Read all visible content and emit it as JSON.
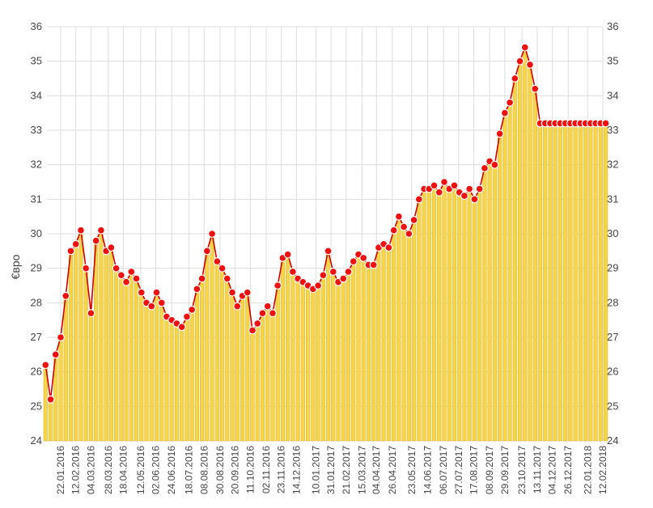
{
  "chart_data": {
    "type": "area",
    "ylabel": "€вро",
    "ylim": [
      24,
      36
    ],
    "yticks": [
      24,
      25,
      26,
      27,
      28,
      29,
      30,
      31,
      32,
      33,
      34,
      35,
      36
    ],
    "x_tick_labels": [
      "22.01.2016",
      "12.02.2016",
      "04.03.2016",
      "28.03.2016",
      "18.04.2016",
      "12.05.2016",
      "02.06.2016",
      "24.06.2016",
      "18.07.2016",
      "08.08.2016",
      "30.08.2016",
      "20.09.2016",
      "11.10.2016",
      "02.11.2016",
      "23.11.2016",
      "14.12.2016",
      "10.01.2017",
      "31.01.2017",
      "21.02.2017",
      "15.03.2017",
      "04.04.2017",
      "26.04.2017",
      "23.05.2017",
      "14.06.2017",
      "06.07.2017",
      "27.07.2017",
      "17.08.2017",
      "08.09.2017",
      "29.09.2017",
      "23.10.2017",
      "13.11.2017",
      "04.12.2017",
      "26.12.2017",
      "22.01.2018",
      "12.02.2018"
    ],
    "grid": true,
    "axes": "left-and-right",
    "colors": {
      "fill": "#f7d54a",
      "bar_stroke": "#e3b92a",
      "line": "#d40000",
      "marker": "#ee1111",
      "marker_edge": "#ffffff",
      "grid": "#dddddd"
    },
    "series": [
      {
        "x": [
          "2016-01-01",
          "2016-01-08",
          "2016-01-15",
          "2016-01-22",
          "2016-01-29",
          "2016-02-05",
          "2016-02-12",
          "2016-02-19",
          "2016-02-26",
          "2016-03-04",
          "2016-03-11",
          "2016-03-18",
          "2016-03-25",
          "2016-04-01",
          "2016-04-08",
          "2016-04-15",
          "2016-04-22",
          "2016-04-29",
          "2016-05-06",
          "2016-05-13",
          "2016-05-20",
          "2016-05-27",
          "2016-06-03",
          "2016-06-10",
          "2016-06-17",
          "2016-06-24",
          "2016-07-01",
          "2016-07-08",
          "2016-07-15",
          "2016-07-22",
          "2016-07-29",
          "2016-08-05",
          "2016-08-12",
          "2016-08-19",
          "2016-08-26",
          "2016-09-02",
          "2016-09-09",
          "2016-09-16",
          "2016-09-23",
          "2016-09-30",
          "2016-10-07",
          "2016-10-14",
          "2016-10-21",
          "2016-10-28",
          "2016-11-04",
          "2016-11-11",
          "2016-11-18",
          "2016-11-25",
          "2016-12-02",
          "2016-12-09",
          "2016-12-16",
          "2016-12-23",
          "2016-12-30",
          "2017-01-06",
          "2017-01-13",
          "2017-01-20",
          "2017-01-27",
          "2017-02-03",
          "2017-02-10",
          "2017-02-17",
          "2017-02-24",
          "2017-03-03",
          "2017-03-10",
          "2017-03-17",
          "2017-03-24",
          "2017-03-31",
          "2017-04-07",
          "2017-04-14",
          "2017-04-21",
          "2017-04-28",
          "2017-05-05",
          "2017-05-12",
          "2017-05-19",
          "2017-05-26",
          "2017-06-02",
          "2017-06-09",
          "2017-06-16",
          "2017-06-23",
          "2017-06-30",
          "2017-07-07",
          "2017-07-14",
          "2017-07-21",
          "2017-07-28",
          "2017-08-04",
          "2017-08-11",
          "2017-08-18",
          "2017-08-25",
          "2017-09-01",
          "2017-09-08",
          "2017-09-15",
          "2017-09-22",
          "2017-09-29",
          "2017-10-06",
          "2017-10-13",
          "2017-10-20",
          "2017-10-27",
          "2017-11-03",
          "2017-11-10",
          "2017-11-17",
          "2017-11-24",
          "2017-12-01",
          "2017-12-08",
          "2017-12-15",
          "2017-12-22",
          "2017-12-29",
          "2018-01-05",
          "2018-01-12",
          "2018-01-19",
          "2018-01-26",
          "2018-02-02",
          "2018-02-09",
          "2018-02-16"
        ],
        "values": [
          26.2,
          25.2,
          26.5,
          27.0,
          28.2,
          29.5,
          29.7,
          30.1,
          29.0,
          27.7,
          29.8,
          30.1,
          29.5,
          29.6,
          29.0,
          28.8,
          28.6,
          28.9,
          28.7,
          28.3,
          28.0,
          27.9,
          28.3,
          28.0,
          27.6,
          27.5,
          27.4,
          27.3,
          27.6,
          27.8,
          28.4,
          28.7,
          29.5,
          30.0,
          29.2,
          29.0,
          28.7,
          28.3,
          27.9,
          28.2,
          28.3,
          27.2,
          27.4,
          27.7,
          27.9,
          27.7,
          28.5,
          29.3,
          29.4,
          28.9,
          28.7,
          28.6,
          28.5,
          28.4,
          28.5,
          28.8,
          29.5,
          28.9,
          28.6,
          28.7,
          28.9,
          29.2,
          29.4,
          29.3,
          29.1,
          29.1,
          29.6,
          29.7,
          29.6,
          30.1,
          30.5,
          30.2,
          30.0,
          30.4,
          31.0,
          31.3,
          31.3,
          31.4,
          31.2,
          31.5,
          31.3,
          31.4,
          31.2,
          31.1,
          31.3,
          31.0,
          31.3,
          31.9,
          32.1,
          32.0,
          32.9,
          33.5,
          33.8,
          34.5,
          35.0,
          35.4,
          34.9,
          34.2,
          33.2,
          33.2,
          33.2,
          33.2,
          33.2,
          33.2,
          33.2,
          33.2,
          33.2,
          33.2,
          33.2,
          33.2,
          33.2,
          33.2
        ]
      }
    ]
  }
}
